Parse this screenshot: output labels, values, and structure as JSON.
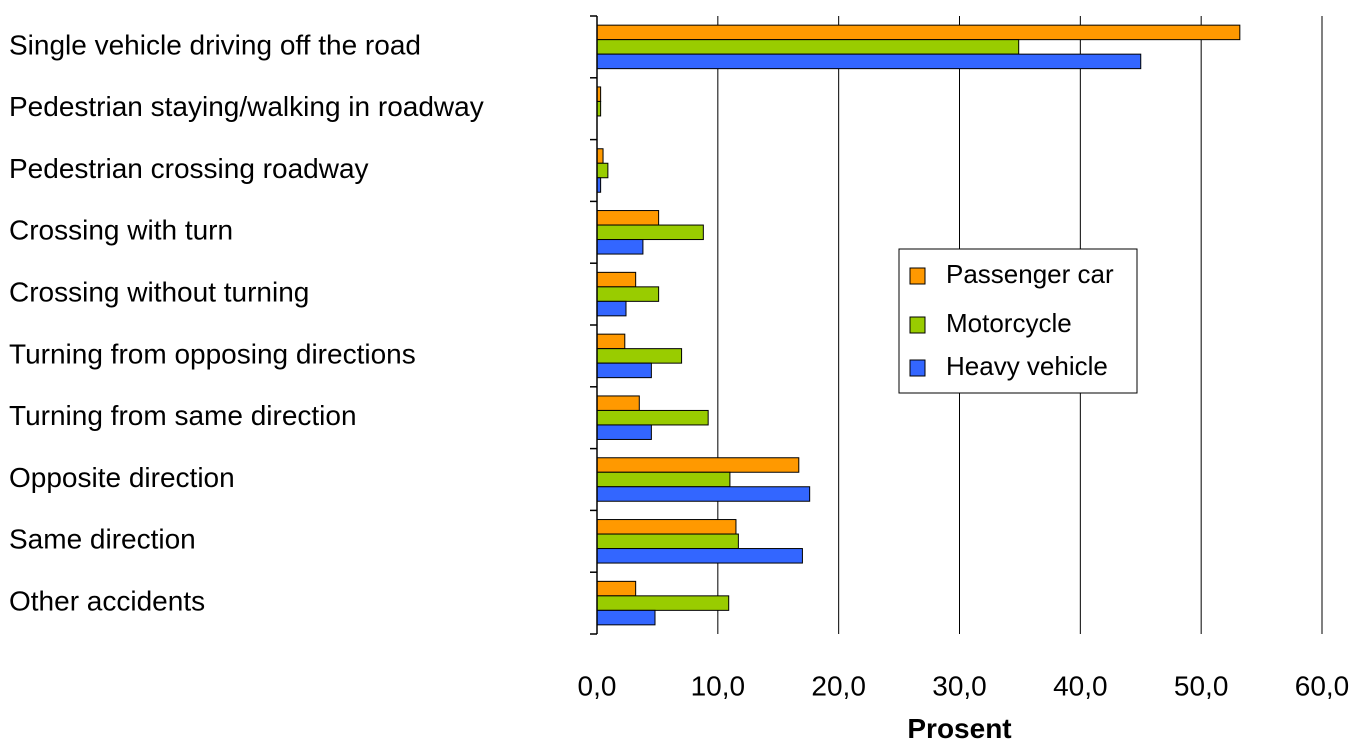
{
  "chart_data": {
    "type": "bar",
    "orientation": "horizontal",
    "categories": [
      "Single vehicle driving off the road",
      "Pedestrian staying/walking in roadway",
      "Pedestrian crossing roadway",
      "Crossing with turn",
      "Crossing without turning",
      "Turning from opposing directions",
      "Turning from same direction",
      "Opposite direction",
      "Same direction",
      "Other accidents"
    ],
    "series": [
      {
        "name": "Passenger car",
        "color": "#FF9900",
        "values": [
          53.2,
          0.3,
          0.5,
          5.1,
          3.2,
          2.3,
          3.5,
          16.7,
          11.5,
          3.2
        ]
      },
      {
        "name": "Motorcycle",
        "color": "#99CC00",
        "values": [
          34.9,
          0.3,
          0.9,
          8.8,
          5.1,
          7.0,
          9.2,
          11.0,
          11.7,
          10.9
        ]
      },
      {
        "name": "Heavy vehicle",
        "color": "#3366FF",
        "values": [
          45.0,
          0.0,
          0.3,
          3.8,
          2.4,
          4.5,
          4.5,
          17.6,
          17.0,
          4.8
        ]
      }
    ],
    "xlabel": "Prosent",
    "ylabel": "",
    "xlim": [
      0,
      60
    ],
    "xticks": [
      0,
      10,
      20,
      30,
      40,
      50,
      60
    ],
    "xtick_labels": [
      "0,0",
      "10,0",
      "20,0",
      "30,0",
      "40,0",
      "50,0",
      "60,0"
    ],
    "grid": "vertical",
    "legend": {
      "position": "center-right",
      "entries": [
        "Passenger car",
        "Motorcycle",
        "Heavy vehicle"
      ]
    }
  }
}
